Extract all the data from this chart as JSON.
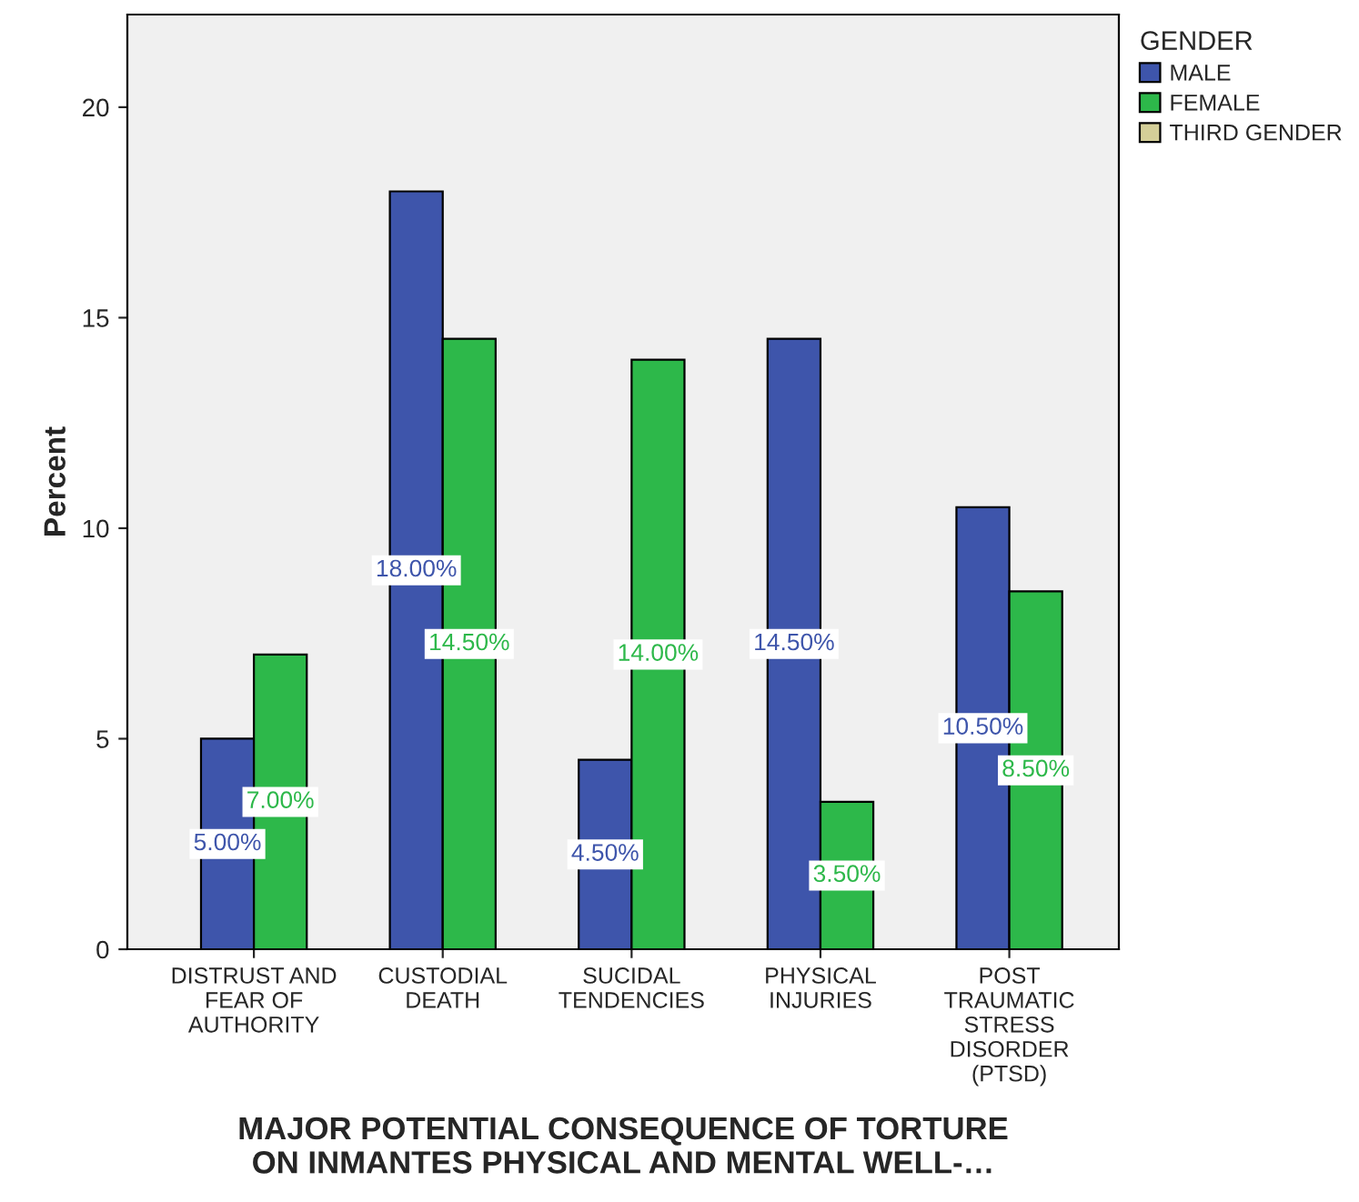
{
  "chart_data": {
    "type": "bar",
    "xlabel": "MAJOR POTENTIAL CONSEQUENCE OF TORTURE\nON INMANTES PHYSICAL AND MENTAL WELL-…",
    "ylabel": "Percent",
    "categories": [
      "DISTRUST AND\nFEAR OF\nAUTHORITY",
      "CUSTODIAL\nDEATH",
      "SUCIDAL\nTENDENCIES",
      "PHYSICAL\nINJURIES",
      "POST\nTRAUMATIC\nSTRESS\nDISORDER\n(PTSD)"
    ],
    "series": [
      {
        "name": "MALE",
        "color": "#3e55ab",
        "values": [
          5,
          18,
          4.5,
          14.5,
          10.5
        ],
        "value_labels": [
          "5.00%",
          "18.00%",
          "4.50%",
          "14.50%",
          "10.50%"
        ]
      },
      {
        "name": "FEMALE",
        "color": "#2db84a",
        "values": [
          7,
          14.5,
          14,
          3.5,
          8.5
        ],
        "value_labels": [
          "7.00%",
          "14.50%",
          "14.00%",
          "3.50%",
          "8.50%"
        ]
      },
      {
        "name": "THIRD GENDER",
        "color": "#d4cf98",
        "values": [
          null,
          null,
          null,
          null,
          null
        ]
      }
    ],
    "legend_title": "GENDER",
    "legend": "right",
    "ylim": [
      0,
      22.2
    ],
    "yticks": [
      0,
      5,
      10,
      15,
      20
    ],
    "grid": false
  }
}
